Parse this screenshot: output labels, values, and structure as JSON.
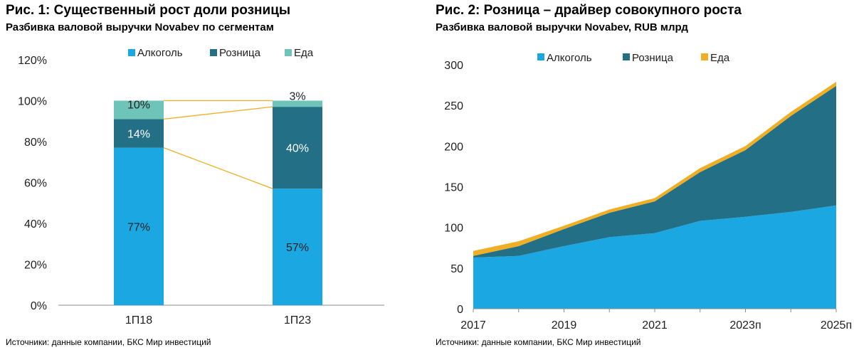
{
  "colors": {
    "alcohol": "#1aa7e2",
    "retail": "#236f86",
    "food": "#6fc4b9",
    "food2": "#f0ae25",
    "connector": "#f0ae25",
    "axis": "#8c8c8c"
  },
  "chart_data": [
    {
      "type": "bar",
      "stacked": true,
      "percent": true,
      "title": "Рис. 1: Существенный рост доли розницы",
      "subtitle": "Разбивка валовой выручки Novabev по сегментам",
      "source": "Источники: данные компании, БКС Мир инвестиций",
      "categories": [
        "1П18",
        "1П23"
      ],
      "series": [
        {
          "name": "Алкоголь",
          "values": [
            77,
            57
          ],
          "labels": [
            "77%",
            "57%"
          ],
          "color": "#1aa7e2",
          "label_color": "#1e1e1e"
        },
        {
          "name": "Розница",
          "values": [
            14,
            40
          ],
          "labels": [
            "14%",
            "40%"
          ],
          "color": "#236f86",
          "label_color": "#ffffff"
        },
        {
          "name": "Еда",
          "values": [
            10,
            3
          ],
          "labels": [
            "10%",
            "3%"
          ],
          "color": "#6fc4b9",
          "label_color": "#1e1e1e"
        }
      ],
      "yticks": [
        "0%",
        "20%",
        "40%",
        "60%",
        "80%",
        "100%",
        "120%"
      ],
      "ylim": [
        0,
        120
      ],
      "legend": "top",
      "grid": false
    },
    {
      "type": "area",
      "stacked": true,
      "title": "Рис. 2: Розница – драйвер совокупного роста",
      "subtitle": "Разбивка валовой выручки Novabev, RUB млрд",
      "source": "Источники: данные компании, БКС Мир инвестиций",
      "x": [
        "2017",
        "2018",
        "2019",
        "2020",
        "2021",
        "2022",
        "2023п",
        "2024п",
        "2025п"
      ],
      "xticks": [
        "2017",
        "2019",
        "2021",
        "2023п",
        "2025п"
      ],
      "series": [
        {
          "name": "Алкоголь",
          "values": [
            63,
            65,
            77,
            88,
            93,
            108,
            113,
            119,
            127
          ],
          "color": "#1aa7e2"
        },
        {
          "name": "Розница",
          "values": [
            2,
            12,
            21,
            30,
            39,
            60,
            82,
            118,
            147
          ],
          "color": "#236f86"
        },
        {
          "name": "Еда",
          "values": [
            6,
            6,
            4,
            4,
            4,
            5,
            5,
            5,
            5
          ],
          "color": "#f0ae25"
        }
      ],
      "yticks": [
        "0",
        "50",
        "100",
        "150",
        "200",
        "250",
        "300"
      ],
      "ylim": [
        0,
        300
      ],
      "legend": "top",
      "grid": false
    }
  ]
}
